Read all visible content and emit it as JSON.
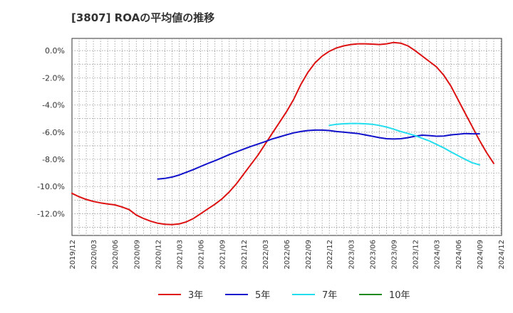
{
  "chart_data": {
    "type": "line",
    "title": "[3807]  ROAの平均値の推移",
    "xlabel": "",
    "ylabel": "",
    "x_ticks": [
      "2019/12",
      "2020/03",
      "2020/06",
      "2020/09",
      "2020/12",
      "2021/03",
      "2021/06",
      "2021/09",
      "2021/12",
      "2022/03",
      "2022/06",
      "2022/09",
      "2022/12",
      "2023/03",
      "2023/06",
      "2023/09",
      "2023/12",
      "2024/03",
      "2024/06",
      "2024/09",
      "2024/12",
      "2025/03"
    ],
    "y_ticks": [
      "0.0%",
      "-2.0%",
      "-4.0%",
      "-6.0%",
      "-8.0%",
      "-10.0%",
      "-12.0%"
    ],
    "ylim": [
      -13.6,
      0.9
    ],
    "grid": true,
    "legend_position": "bottom",
    "series": [
      {
        "name": "3年",
        "color": "#dd1111",
        "points": [
          [
            "2019/12",
            -10.5
          ],
          [
            "2020/01",
            -10.75
          ],
          [
            "2020/02",
            -10.95
          ],
          [
            "2020/03",
            -11.1
          ],
          [
            "2020/04",
            -11.2
          ],
          [
            "2020/05",
            -11.28
          ],
          [
            "2020/06",
            -11.35
          ],
          [
            "2020/07",
            -11.5
          ],
          [
            "2020/08",
            -11.7
          ],
          [
            "2020/09",
            -12.1
          ],
          [
            "2020/10",
            -12.35
          ],
          [
            "2020/11",
            -12.55
          ],
          [
            "2020/12",
            -12.7
          ],
          [
            "2021/01",
            -12.78
          ],
          [
            "2021/02",
            -12.8
          ],
          [
            "2021/03",
            -12.75
          ],
          [
            "2021/04",
            -12.6
          ],
          [
            "2021/05",
            -12.35
          ],
          [
            "2021/06",
            -12.0
          ],
          [
            "2021/07",
            -11.65
          ],
          [
            "2021/08",
            -11.3
          ],
          [
            "2021/09",
            -10.9
          ],
          [
            "2021/10",
            -10.4
          ],
          [
            "2021/11",
            -9.8
          ],
          [
            "2021/12",
            -9.1
          ],
          [
            "2022/01",
            -8.4
          ],
          [
            "2022/02",
            -7.7
          ],
          [
            "2022/03",
            -6.9
          ],
          [
            "2022/04",
            -6.1
          ],
          [
            "2022/05",
            -5.3
          ],
          [
            "2022/06",
            -4.5
          ],
          [
            "2022/07",
            -3.6
          ],
          [
            "2022/08",
            -2.5
          ],
          [
            "2022/09",
            -1.6
          ],
          [
            "2022/10",
            -0.9
          ],
          [
            "2022/11",
            -0.4
          ],
          [
            "2022/12",
            -0.05
          ],
          [
            "2023/01",
            0.2
          ],
          [
            "2023/02",
            0.35
          ],
          [
            "2023/03",
            0.45
          ],
          [
            "2023/04",
            0.5
          ],
          [
            "2023/05",
            0.5
          ],
          [
            "2023/06",
            0.48
          ],
          [
            "2023/07",
            0.45
          ],
          [
            "2023/08",
            0.5
          ],
          [
            "2023/09",
            0.6
          ],
          [
            "2023/10",
            0.55
          ],
          [
            "2023/11",
            0.35
          ],
          [
            "2023/12",
            0.0
          ],
          [
            "2024/01",
            -0.4
          ],
          [
            "2024/02",
            -0.8
          ],
          [
            "2024/03",
            -1.2
          ],
          [
            "2024/04",
            -1.8
          ],
          [
            "2024/05",
            -2.6
          ],
          [
            "2024/06",
            -3.6
          ],
          [
            "2024/07",
            -4.6
          ],
          [
            "2024/08",
            -5.6
          ],
          [
            "2024/09",
            -6.6
          ],
          [
            "2024/10",
            -7.5
          ],
          [
            "2024/11",
            -8.3
          ]
        ]
      },
      {
        "name": "5年",
        "color": "#1111cc",
        "points": [
          [
            "2020/12",
            -9.45
          ],
          [
            "2021/01",
            -9.4
          ],
          [
            "2021/02",
            -9.3
          ],
          [
            "2021/03",
            -9.15
          ],
          [
            "2021/04",
            -8.95
          ],
          [
            "2021/05",
            -8.75
          ],
          [
            "2021/06",
            -8.52
          ],
          [
            "2021/07",
            -8.3
          ],
          [
            "2021/08",
            -8.1
          ],
          [
            "2021/09",
            -7.88
          ],
          [
            "2021/10",
            -7.65
          ],
          [
            "2021/11",
            -7.45
          ],
          [
            "2021/12",
            -7.25
          ],
          [
            "2022/01",
            -7.05
          ],
          [
            "2022/02",
            -6.88
          ],
          [
            "2022/03",
            -6.7
          ],
          [
            "2022/04",
            -6.5
          ],
          [
            "2022/05",
            -6.35
          ],
          [
            "2022/06",
            -6.2
          ],
          [
            "2022/07",
            -6.05
          ],
          [
            "2022/08",
            -5.95
          ],
          [
            "2022/09",
            -5.88
          ],
          [
            "2022/10",
            -5.85
          ],
          [
            "2022/11",
            -5.85
          ],
          [
            "2022/12",
            -5.88
          ],
          [
            "2023/01",
            -5.95
          ],
          [
            "2023/02",
            -6.0
          ],
          [
            "2023/03",
            -6.05
          ],
          [
            "2023/04",
            -6.1
          ],
          [
            "2023/05",
            -6.2
          ],
          [
            "2023/06",
            -6.3
          ],
          [
            "2023/07",
            -6.4
          ],
          [
            "2023/08",
            -6.48
          ],
          [
            "2023/09",
            -6.5
          ],
          [
            "2023/10",
            -6.48
          ],
          [
            "2023/11",
            -6.4
          ],
          [
            "2023/12",
            -6.3
          ],
          [
            "2024/01",
            -6.22
          ],
          [
            "2024/02",
            -6.25
          ],
          [
            "2024/03",
            -6.3
          ],
          [
            "2024/04",
            -6.28
          ],
          [
            "2024/05",
            -6.2
          ],
          [
            "2024/06",
            -6.15
          ],
          [
            "2024/07",
            -6.1
          ],
          [
            "2024/08",
            -6.12
          ],
          [
            "2024/09",
            -6.12
          ]
        ]
      },
      {
        "name": "7年",
        "color": "#22ddee",
        "points": [
          [
            "2022/12",
            -5.5
          ],
          [
            "2023/01",
            -5.42
          ],
          [
            "2023/02",
            -5.38
          ],
          [
            "2023/03",
            -5.36
          ],
          [
            "2023/04",
            -5.36
          ],
          [
            "2023/05",
            -5.38
          ],
          [
            "2023/06",
            -5.42
          ],
          [
            "2023/07",
            -5.5
          ],
          [
            "2023/08",
            -5.62
          ],
          [
            "2023/09",
            -5.78
          ],
          [
            "2023/10",
            -5.95
          ],
          [
            "2023/11",
            -6.1
          ],
          [
            "2023/12",
            -6.25
          ],
          [
            "2024/01",
            -6.45
          ],
          [
            "2024/02",
            -6.65
          ],
          [
            "2024/03",
            -6.9
          ],
          [
            "2024/04",
            -7.15
          ],
          [
            "2024/05",
            -7.45
          ],
          [
            "2024/06",
            -7.72
          ],
          [
            "2024/07",
            -8.0
          ],
          [
            "2024/08",
            -8.25
          ],
          [
            "2024/09",
            -8.4
          ]
        ]
      },
      {
        "name": "10年",
        "color": "#228822",
        "points": []
      }
    ]
  }
}
